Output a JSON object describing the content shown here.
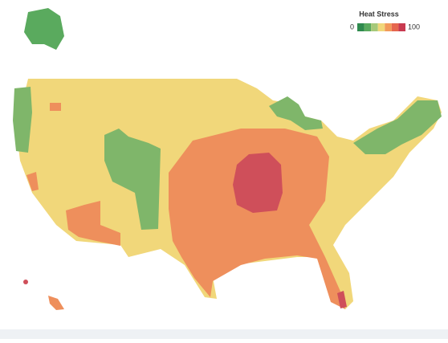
{
  "legend": {
    "title": "Heat Stress",
    "min": 0,
    "max": 100,
    "colors": [
      "#2f8a4e",
      "#5aaa5e",
      "#a6c97a",
      "#f1d77a",
      "#f29a5a",
      "#e6674f",
      "#c83a50"
    ]
  }
}
